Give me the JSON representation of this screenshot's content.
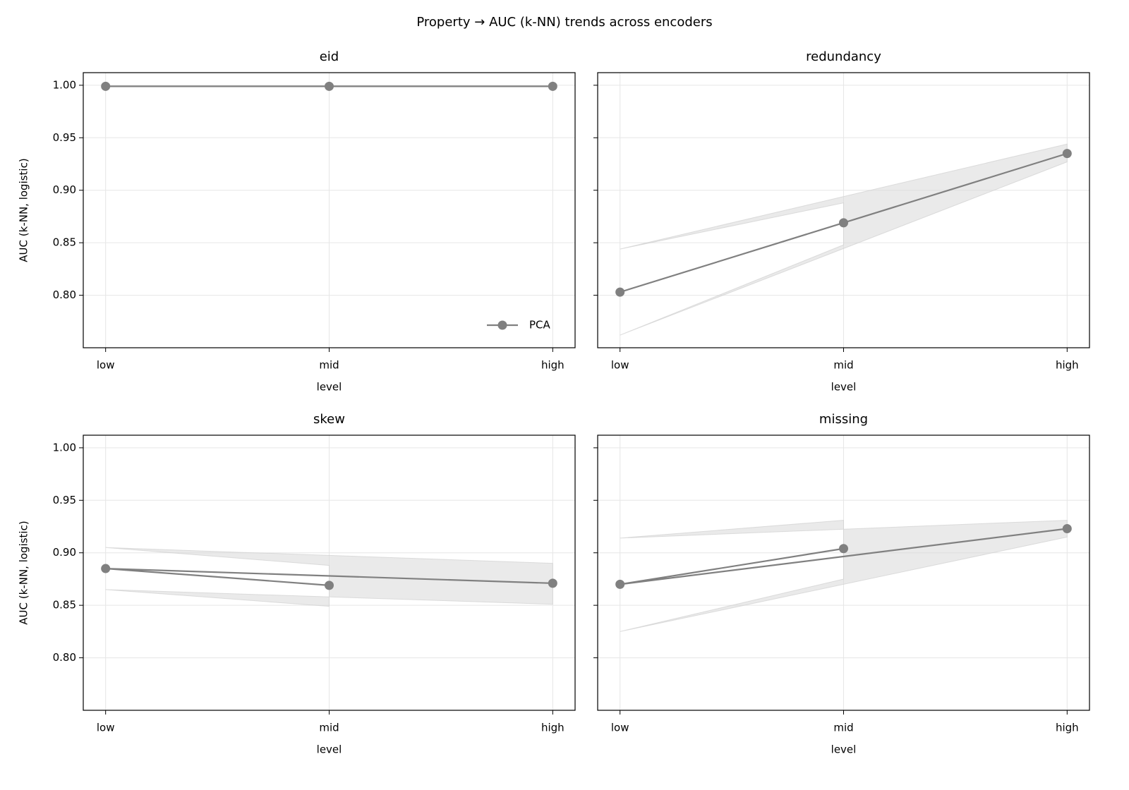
{
  "suptitle": "Property → AUC (k-NN) trends across encoders",
  "chart_data": [
    {
      "type": "line",
      "title": "eid",
      "xlabel": "level",
      "ylabel": "AUC (k-NN, logistic)",
      "categories": [
        "low",
        "mid",
        "high"
      ],
      "ylim": [
        0.75,
        1.012
      ],
      "yticks": [
        {
          "value": 0.8,
          "label": "0.80"
        },
        {
          "value": 0.85,
          "label": "0.85"
        },
        {
          "value": 0.9,
          "label": "0.90"
        },
        {
          "value": 0.95,
          "label": "0.95"
        },
        {
          "value": 1.0,
          "label": "1.00"
        }
      ],
      "grid": true,
      "legend": "lower right",
      "series": [
        {
          "name": "PCA",
          "color": "#808080",
          "x": [
            "high",
            "low",
            "mid"
          ],
          "values": [
            0.999,
            0.999,
            0.999
          ]
        }
      ]
    },
    {
      "type": "line",
      "title": "redundancy",
      "xlabel": "level",
      "categories": [
        "low",
        "mid",
        "high"
      ],
      "ylim": [
        0.75,
        1.012
      ],
      "yticks": [
        0.8,
        0.85,
        0.9,
        0.95,
        1.0
      ],
      "grid": true,
      "series": [
        {
          "color": "#808080",
          "x": [
            "high",
            "low",
            "mid"
          ],
          "values": [
            0.935,
            0.803,
            0.869
          ],
          "lower": [
            0.927,
            0.762,
            0.848
          ],
          "upper": [
            0.944,
            0.844,
            0.888
          ]
        }
      ]
    },
    {
      "type": "line",
      "title": "skew",
      "xlabel": "level",
      "ylabel": "AUC (k-NN, logistic)",
      "categories": [
        "low",
        "mid",
        "high"
      ],
      "ylim": [
        0.75,
        1.012
      ],
      "yticks": [
        {
          "value": 0.8,
          "label": "0.80"
        },
        {
          "value": 0.85,
          "label": "0.85"
        },
        {
          "value": 0.9,
          "label": "0.90"
        },
        {
          "value": 0.95,
          "label": "0.95"
        },
        {
          "value": 1.0,
          "label": "1.00"
        }
      ],
      "grid": true,
      "series": [
        {
          "color": "#808080",
          "x": [
            "high",
            "low",
            "mid"
          ],
          "values": [
            0.871,
            0.885,
            0.869
          ],
          "lower": [
            0.851,
            0.865,
            0.849
          ],
          "upper": [
            0.89,
            0.905,
            0.888
          ]
        }
      ]
    },
    {
      "type": "line",
      "title": "missing",
      "xlabel": "level",
      "categories": [
        "low",
        "mid",
        "high"
      ],
      "ylim": [
        0.75,
        1.012
      ],
      "yticks": [
        0.8,
        0.85,
        0.9,
        0.95,
        1.0
      ],
      "grid": true,
      "series": [
        {
          "color": "#808080",
          "x": [
            "high",
            "low",
            "mid"
          ],
          "values": [
            0.923,
            0.87,
            0.904
          ],
          "lower": [
            0.915,
            0.825,
            0.875
          ],
          "upper": [
            0.931,
            0.914,
            0.931
          ]
        }
      ]
    }
  ]
}
